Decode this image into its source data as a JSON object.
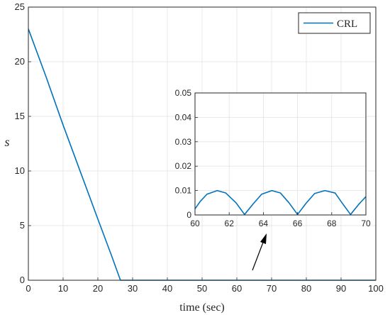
{
  "chart_data": [
    {
      "type": "line",
      "title": "",
      "xlabel": "time (sec)",
      "ylabel": "s",
      "xlim": [
        0,
        100
      ],
      "ylim": [
        0,
        25
      ],
      "x_ticks": [
        "0",
        "10",
        "20",
        "30",
        "40",
        "50",
        "60",
        "70",
        "80",
        "90",
        "100"
      ],
      "y_ticks": [
        "0",
        "5",
        "10",
        "15",
        "20",
        "25"
      ],
      "grid": true,
      "legend_position": "top-right",
      "series": [
        {
          "name": "CRL",
          "color": "#0072BD",
          "x": [
            0,
            5,
            10,
            15,
            20,
            24,
            26.5,
            30,
            100
          ],
          "y": [
            23,
            18.7,
            14.2,
            9.9,
            5.6,
            2.2,
            0,
            0,
            0
          ]
        }
      ]
    },
    {
      "type": "line",
      "title": "",
      "xlabel": "",
      "ylabel": "",
      "xlim": [
        60,
        70
      ],
      "ylim": [
        0,
        0.05
      ],
      "x_ticks": [
        "60",
        "62",
        "64",
        "66",
        "68",
        "70"
      ],
      "y_ticks": [
        "0",
        "0.01",
        "0.02",
        "0.03",
        "0.04",
        "0.05"
      ],
      "grid": true,
      "series": [
        {
          "name": "",
          "color": "#0072BD",
          "x": [
            60,
            60.3,
            60.7,
            61.3,
            61.8,
            62.4,
            62.9,
            63.4,
            63.9,
            64.5,
            65.0,
            65.5,
            66.0,
            66.5,
            67.0,
            67.6,
            68.2,
            68.6,
            69.1,
            69.6,
            70
          ],
          "y": [
            0.0025,
            0.0055,
            0.0085,
            0.01,
            0.009,
            0.005,
            0.0002,
            0.0045,
            0.0085,
            0.01,
            0.009,
            0.005,
            0.0002,
            0.0048,
            0.0088,
            0.01,
            0.009,
            0.005,
            0.0002,
            0.0045,
            0.0075
          ]
        }
      ]
    }
  ],
  "legend": {
    "label": "CRL"
  }
}
